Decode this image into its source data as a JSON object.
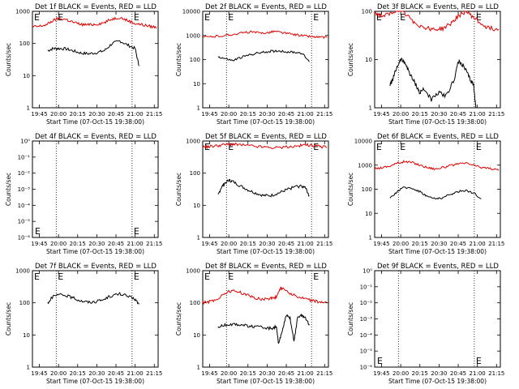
{
  "chart_data": [
    {
      "type": "line",
      "title": "Det 1f BLACK = Events, RED = LLD",
      "xlabel": "Start Time (07-Oct-15 19:38:00)",
      "ylabel": "Counts/sec",
      "xlim": [
        19.66,
        21.3
      ],
      "ylim": [
        1,
        1000
      ],
      "yscale": "log",
      "xticks": [
        "19:45",
        "20:00",
        "20:15",
        "20:30",
        "20:45",
        "21:00",
        "21:15"
      ],
      "yticks": [
        "1",
        "10",
        "100",
        "1000"
      ],
      "markers": [
        19.97,
        20.96
      ],
      "marker_labels": [
        "E",
        "E"
      ],
      "series": [
        {
          "name": "Events",
          "color": "#000000",
          "x": [
            19.86,
            19.93,
            20.0,
            20.1,
            20.2,
            20.3,
            20.4,
            20.5,
            20.6,
            20.7,
            20.8,
            20.9,
            21.0,
            21.05
          ],
          "y": [
            60,
            70,
            70,
            68,
            58,
            50,
            48,
            52,
            60,
            100,
            120,
            90,
            70,
            20
          ]
        },
        {
          "name": "LLD",
          "color": "#e00000",
          "x": [
            19.66,
            19.75,
            19.85,
            19.93,
            20.0,
            20.1,
            20.2,
            20.3,
            20.4,
            20.5,
            20.6,
            20.7,
            20.8,
            20.9,
            21.0,
            21.1,
            21.2,
            21.28
          ],
          "y": [
            330,
            340,
            390,
            520,
            600,
            560,
            450,
            390,
            380,
            400,
            450,
            580,
            650,
            520,
            420,
            380,
            340,
            320
          ]
        }
      ]
    },
    {
      "type": "line",
      "title": "Det 2f BLACK = Events, RED = LLD",
      "xlabel": "Start Time (07-Oct-15 19:38:00)",
      "ylabel": "Counts/sec",
      "xlim": [
        19.66,
        21.3
      ],
      "ylim": [
        1,
        10000
      ],
      "yscale": "log",
      "xticks": [
        "19:45",
        "20:00",
        "20:15",
        "20:30",
        "20:45",
        "21:00",
        "21:15"
      ],
      "yticks": [
        "1",
        "10",
        "100",
        "1000",
        "10000"
      ],
      "markers": [
        19.97,
        21.08
      ],
      "marker_labels": [
        "E",
        "E"
      ],
      "series": [
        {
          "name": "Events",
          "color": "#000000",
          "x": [
            19.86,
            19.95,
            20.05,
            20.15,
            20.25,
            20.35,
            20.45,
            20.55,
            20.65,
            20.75,
            20.85,
            20.95,
            21.05
          ],
          "y": [
            130,
            110,
            90,
            120,
            150,
            180,
            200,
            220,
            230,
            210,
            200,
            190,
            80
          ]
        },
        {
          "name": "LLD",
          "color": "#e00000",
          "x": [
            19.66,
            19.8,
            19.95,
            20.05,
            20.2,
            20.3,
            20.4,
            20.5,
            20.6,
            20.7,
            20.8,
            20.9,
            21.0,
            21.1,
            21.2,
            21.28
          ],
          "y": [
            850,
            900,
            1000,
            1100,
            1300,
            1400,
            1250,
            1300,
            1500,
            1300,
            1150,
            1050,
            950,
            880,
            840,
            820
          ]
        }
      ]
    },
    {
      "type": "line",
      "title": "Det 3f BLACK = Events, RED = LLD",
      "xlabel": "Start Time (07-Oct-15 19:38:00)",
      "ylabel": "Counts/sec",
      "xlim": [
        19.66,
        21.3
      ],
      "ylim": [
        1,
        100
      ],
      "yscale": "log",
      "xticks": [
        "19:45",
        "20:00",
        "20:15",
        "20:30",
        "20:45",
        "21:00",
        "21:15"
      ],
      "yticks": [
        "1",
        "10",
        "100"
      ],
      "markers": [
        19.97,
        20.96
      ],
      "marker_labels": [
        "E",
        "E"
      ],
      "series": [
        {
          "name": "Events",
          "color": "#000000",
          "x": [
            19.86,
            19.9,
            19.95,
            20.0,
            20.05,
            20.1,
            20.15,
            20.2,
            20.25,
            20.3,
            20.4,
            20.5,
            20.6,
            20.7,
            20.75,
            20.8,
            20.85,
            20.9,
            20.95,
            20.98
          ],
          "y": [
            3,
            4,
            7,
            10,
            9,
            6,
            4,
            3,
            2,
            2.5,
            1.5,
            2,
            1.8,
            4,
            9,
            8,
            6,
            4,
            3,
            1
          ]
        },
        {
          "name": "LLD",
          "color": "#e00000",
          "x": [
            19.66,
            19.75,
            19.85,
            19.95,
            20.05,
            20.15,
            20.25,
            20.35,
            20.45,
            20.55,
            20.65,
            20.75,
            20.85,
            20.95,
            21.05,
            21.15,
            21.28
          ],
          "y": [
            95,
            80,
            85,
            110,
            90,
            65,
            50,
            45,
            42,
            44,
            55,
            80,
            100,
            75,
            55,
            45,
            42
          ]
        }
      ]
    },
    {
      "type": "line",
      "title": "Det 4f BLACK = Events, RED = LLD",
      "xlabel": "Start Time (07-Oct-15 19:38:00)",
      "ylabel": "Counts/sec",
      "xlim": [
        19.66,
        21.3
      ],
      "ylim": [
        1e-06,
        0.0001
      ],
      "yscale": "log",
      "xticks": [
        "19:45",
        "20:00",
        "20:15",
        "20:30",
        "20:45",
        "21:00",
        "21:15"
      ],
      "yticks": [
        "10⁻⁶",
        "10⁻⁵",
        "10⁻⁴",
        "10⁻³",
        "10⁻²",
        "10⁻¹",
        "10⁰"
      ],
      "markers": [
        19.97,
        20.96
      ],
      "marker_labels": [
        "E",
        "E"
      ],
      "series": []
    },
    {
      "type": "line",
      "title": "Det 5f BLACK = Events, RED = LLD",
      "xlabel": "Start Time (07-Oct-15 19:38:00)",
      "ylabel": "Counts/sec",
      "xlim": [
        19.66,
        21.3
      ],
      "ylim": [
        1,
        1000
      ],
      "yscale": "log",
      "xticks": [
        "19:45",
        "20:00",
        "20:15",
        "20:30",
        "20:45",
        "21:00",
        "21:15"
      ],
      "yticks": [
        "1",
        "10",
        "100",
        "1000"
      ],
      "markers": [
        19.97,
        21.08
      ],
      "marker_labels": [
        "E",
        "E"
      ],
      "series": [
        {
          "name": "Events",
          "color": "#000000",
          "x": [
            19.86,
            19.9,
            19.95,
            20.0,
            20.05,
            20.15,
            20.25,
            20.35,
            20.45,
            20.55,
            20.65,
            20.75,
            20.85,
            20.95,
            21.0,
            21.05
          ],
          "y": [
            20,
            35,
            50,
            60,
            55,
            40,
            30,
            24,
            20,
            20,
            24,
            30,
            37,
            40,
            35,
            20
          ]
        },
        {
          "name": "LLD",
          "color": "#e00000",
          "x": [
            19.66,
            19.75,
            19.85,
            19.95,
            20.05,
            20.15,
            20.3,
            20.45,
            20.6,
            20.75,
            20.9,
            21.0,
            21.1,
            21.2,
            21.28
          ],
          "y": [
            650,
            680,
            720,
            780,
            800,
            760,
            700,
            650,
            620,
            640,
            700,
            760,
            720,
            660,
            640
          ]
        }
      ]
    },
    {
      "type": "line",
      "title": "Det 6f BLACK = Events, RED = LLD",
      "xlabel": "Start Time (07-Oct-15 19:38:00)",
      "ylabel": "Counts/sec",
      "xlim": [
        19.66,
        21.3
      ],
      "ylim": [
        1,
        10000
      ],
      "yscale": "log",
      "xticks": [
        "19:45",
        "20:00",
        "20:15",
        "20:30",
        "20:45",
        "21:00",
        "21:15"
      ],
      "yticks": [
        "1",
        "10",
        "100",
        "1000",
        "10000"
      ],
      "markers": [
        19.97,
        20.96
      ],
      "marker_labels": [
        "E",
        "E"
      ],
      "series": [
        {
          "name": "Events",
          "color": "#000000",
          "x": [
            19.86,
            19.95,
            20.05,
            20.15,
            20.25,
            20.35,
            20.45,
            20.55,
            20.65,
            20.75,
            20.85,
            20.95,
            21.05
          ],
          "y": [
            40,
            80,
            120,
            110,
            80,
            50,
            40,
            45,
            60,
            80,
            90,
            70,
            40
          ]
        },
        {
          "name": "LLD",
          "color": "#e00000",
          "x": [
            19.66,
            19.75,
            19.85,
            19.95,
            20.05,
            20.15,
            20.25,
            20.35,
            20.45,
            20.55,
            20.65,
            20.75,
            20.85,
            20.95,
            21.05,
            21.15,
            21.28
          ],
          "y": [
            700,
            800,
            900,
            1200,
            1400,
            1300,
            1000,
            800,
            700,
            800,
            950,
            1100,
            1200,
            1000,
            800,
            750,
            600
          ]
        }
      ]
    },
    {
      "type": "line",
      "title": "Det 7f BLACK = Events, RED = LLD",
      "xlabel": "Start Time (07-Oct-15 19:38:00)",
      "ylabel": "Counts/sec",
      "xlim": [
        19.66,
        21.3
      ],
      "ylim": [
        1,
        1000
      ],
      "yscale": "log",
      "xticks": [
        "19:45",
        "20:00",
        "20:15",
        "20:30",
        "20:45",
        "21:00",
        "21:15"
      ],
      "yticks": [
        "1",
        "10",
        "100",
        "1000"
      ],
      "markers": [
        19.97,
        20.96
      ],
      "marker_labels": [
        "E",
        "E"
      ],
      "series": [
        {
          "name": "Events",
          "color": "#000000",
          "x": [
            19.86,
            19.92,
            20.0,
            20.1,
            20.2,
            20.3,
            20.4,
            20.5,
            20.6,
            20.7,
            20.8,
            20.9,
            21.0,
            21.05
          ],
          "y": [
            100,
            150,
            180,
            170,
            140,
            115,
            105,
            110,
            130,
            170,
            190,
            160,
            130,
            90
          ]
        }
      ]
    },
    {
      "type": "line",
      "title": "Det 8f BLACK = Events, RED = LLD",
      "xlabel": "Start Time (07-Oct-15 19:38:00)",
      "ylabel": "Counts/sec",
      "xlim": [
        19.66,
        21.3
      ],
      "ylim": [
        1,
        1000
      ],
      "yscale": "log",
      "xticks": [
        "19:45",
        "20:00",
        "20:15",
        "20:30",
        "20:45",
        "21:00",
        "21:15"
      ],
      "yticks": [
        "1",
        "10",
        "100",
        "1000"
      ],
      "markers": [
        19.97,
        21.08
      ],
      "marker_labels": [
        "E",
        "E"
      ],
      "series": [
        {
          "name": "Events",
          "color": "#000000",
          "x": [
            19.86,
            19.95,
            20.05,
            20.15,
            20.25,
            20.35,
            20.45,
            20.55,
            20.62,
            20.65,
            20.7,
            20.75,
            20.8,
            20.85,
            20.9,
            20.95,
            21.0,
            21.05
          ],
          "y": [
            18,
            20,
            22,
            21,
            19,
            18,
            17,
            16,
            18,
            5,
            15,
            40,
            35,
            6,
            38,
            40,
            35,
            20
          ]
        },
        {
          "name": "LLD",
          "color": "#e00000",
          "x": [
            19.66,
            19.75,
            19.85,
            19.95,
            20.05,
            20.15,
            20.25,
            20.35,
            20.45,
            20.55,
            20.62,
            20.67,
            20.7,
            20.8,
            20.9,
            21.0,
            21.1,
            21.2,
            21.28
          ],
          "y": [
            100,
            110,
            130,
            200,
            240,
            210,
            170,
            140,
            130,
            140,
            150,
            280,
            290,
            200,
            150,
            130,
            115,
            105,
            100
          ]
        }
      ]
    },
    {
      "type": "line",
      "title": "Det 9f BLACK = Events, RED = LLD",
      "xlabel": "Start Time (07-Oct-15 19:38:00)",
      "ylabel": "Counts/sec",
      "xlim": [
        19.66,
        21.3
      ],
      "ylim": [
        1e-06,
        0.0001
      ],
      "yscale": "log",
      "xticks": [
        "19:45",
        "20:00",
        "20:15",
        "20:30",
        "20:45",
        "21:00",
        "21:15"
      ],
      "yticks": [
        "10⁻⁶",
        "10⁻⁵",
        "10⁻⁴",
        "10⁻³",
        "10⁻²",
        "10⁻¹",
        "10⁰"
      ],
      "markers": [
        19.97,
        20.96
      ],
      "marker_labels": [
        "E",
        "E"
      ],
      "series": []
    }
  ]
}
